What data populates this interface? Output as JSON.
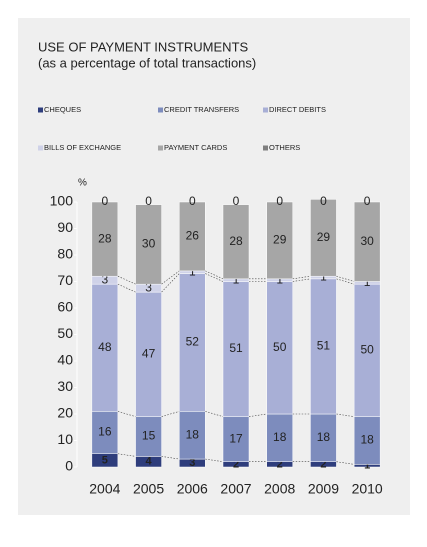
{
  "chart_data": {
    "type": "stacked_bar",
    "title": "USE OF PAYMENT INSTRUMENTS",
    "subtitle": "(as a percentage of total transactions)",
    "y_label": "%",
    "categories": [
      "2004",
      "2005",
      "2006",
      "2007",
      "2008",
      "2009",
      "2010"
    ],
    "series": [
      {
        "name": "CHEQUES",
        "color": "#2e3d7c",
        "values": [
          5,
          4,
          3,
          2,
          2,
          2,
          1
        ]
      },
      {
        "name": "CREDIT TRANSFERS",
        "color": "#7d8cbd",
        "values": [
          16,
          15,
          18,
          17,
          18,
          18,
          18
        ]
      },
      {
        "name": "DIRECT DEBITS",
        "color": "#a8afd6",
        "values": [
          48,
          47,
          52,
          51,
          50,
          51,
          50
        ]
      },
      {
        "name": "BILLS OF EXCHANGE",
        "color": "#cfd2e8",
        "values": [
          3,
          3,
          1,
          1,
          1,
          1,
          1
        ]
      },
      {
        "name": "PAYMENT CARDS",
        "color": "#a6a6a6",
        "values": [
          28,
          30,
          26,
          28,
          29,
          29,
          30
        ]
      },
      {
        "name": "OTHERS",
        "color": "#7f7f7f",
        "values": [
          0,
          0,
          0,
          0,
          0,
          0,
          0
        ]
      }
    ],
    "ylim": [
      0,
      100
    ],
    "yticks": [
      0,
      10,
      20,
      30,
      40,
      50,
      60,
      70,
      80,
      90,
      100
    ]
  }
}
